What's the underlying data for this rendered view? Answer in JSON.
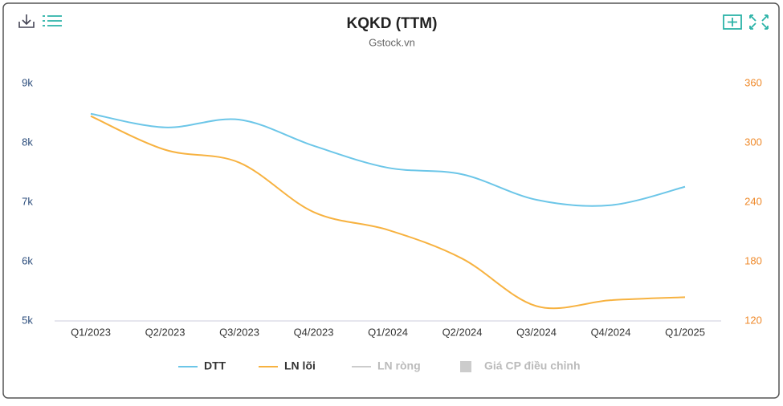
{
  "chart_data": {
    "type": "line",
    "title": "KQKD (TTM)",
    "subtitle": "Gstock.vn",
    "categories": [
      "Q1/2023",
      "Q2/2023",
      "Q3/2023",
      "Q4/2023",
      "Q1/2024",
      "Q2/2024",
      "Q3/2024",
      "Q4/2024",
      "Q1/2025"
    ],
    "ylim": [
      5000,
      9000
    ],
    "yticks": [
      {
        "value": 5000,
        "label": "5k"
      },
      {
        "value": 6000,
        "label": "6k"
      },
      {
        "value": 7000,
        "label": "7k"
      },
      {
        "value": 8000,
        "label": "8k"
      },
      {
        "value": 9000,
        "label": "9k"
      }
    ],
    "y2lim": [
      120,
      360
    ],
    "y2ticks": [
      120,
      180,
      240,
      300,
      360
    ],
    "series": [
      {
        "name": "DTT",
        "color": "#6cc6e8",
        "values": [
          8490,
          8260,
          8390,
          7950,
          7580,
          7470,
          7040,
          6950,
          7260
        ]
      },
      {
        "name": "LN lõi",
        "color": "#f7b240",
        "axis": "y2",
        "values": [
          327,
          293,
          280,
          230,
          212,
          183,
          135,
          141,
          144
        ]
      },
      {
        "name": "LN ròng",
        "color": "#cccccc",
        "axis": "y2",
        "hidden": true,
        "values": [
          null,
          null,
          null,
          null,
          null,
          null,
          null,
          null,
          null
        ]
      },
      {
        "name": "Giá CP điều chỉnh",
        "color": "#cccccc",
        "hidden": true,
        "marker": "square",
        "values": [
          null,
          null,
          null,
          null,
          null,
          null,
          null,
          null,
          null
        ]
      }
    ]
  }
}
